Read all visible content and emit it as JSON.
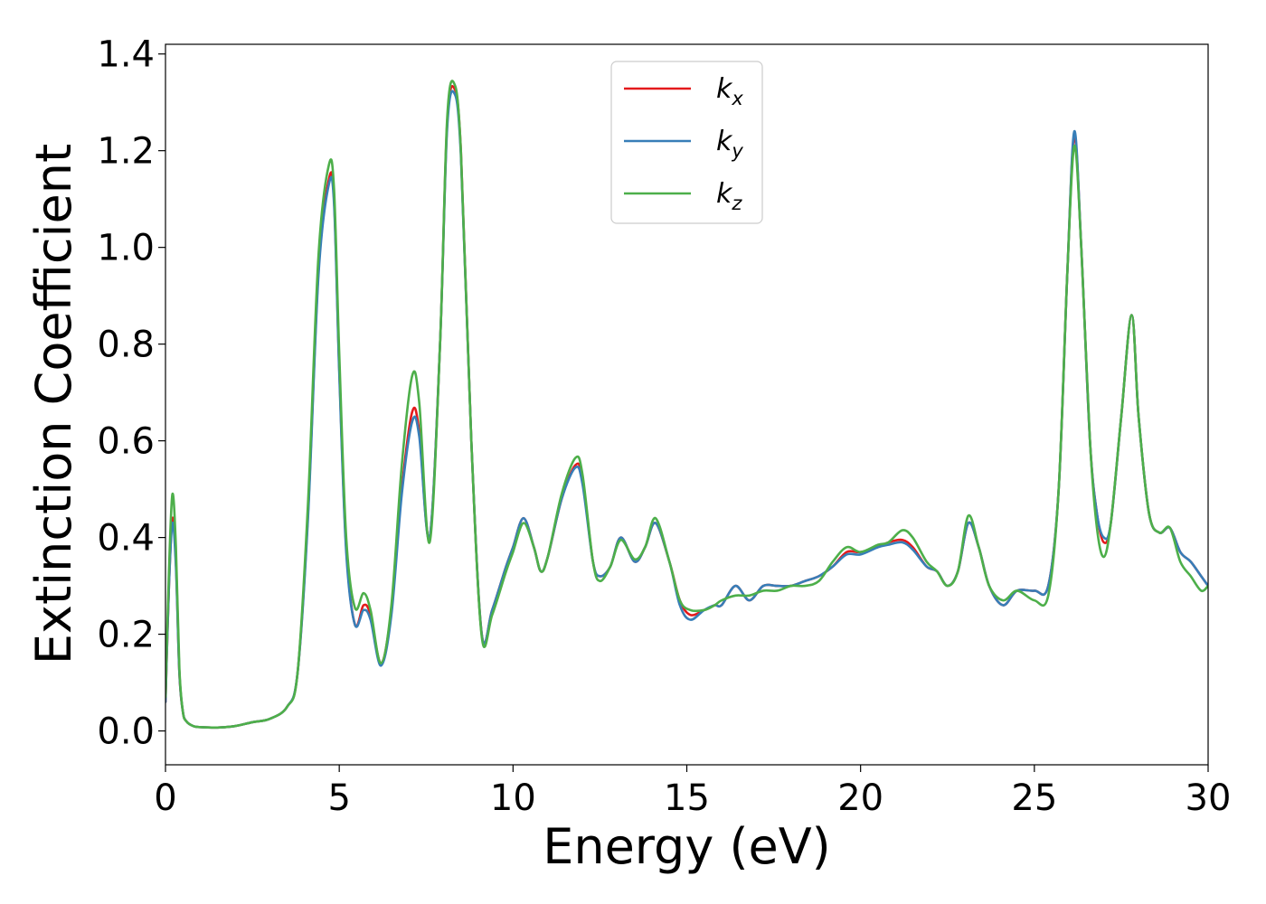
{
  "chart_data": {
    "type": "line",
    "title": "",
    "xlabel": "Energy (eV)",
    "ylabel": "Extinction Coefficient",
    "xlim": [
      0,
      30
    ],
    "ylim": [
      -0.07,
      1.42
    ],
    "xticks": [
      0,
      5,
      10,
      15,
      20,
      25,
      30
    ],
    "xtick_labels": [
      "0",
      "5",
      "10",
      "15",
      "20",
      "25",
      "30"
    ],
    "yticks": [
      0.0,
      0.2,
      0.4,
      0.6,
      0.8,
      1.0,
      1.2,
      1.4
    ],
    "ytick_labels": [
      "0.0",
      "0.2",
      "0.4",
      "0.6",
      "0.8",
      "1.0",
      "1.2",
      "1.4"
    ],
    "grid": false,
    "legend_position": "top-center",
    "series": [
      {
        "name": "k_x",
        "label_base": "k",
        "label_sub": "x",
        "color": "#e41a1c",
        "x": [
          0.0,
          0.1,
          0.2,
          0.3,
          0.4,
          0.5,
          0.6,
          0.8,
          1.0,
          1.5,
          2.0,
          2.5,
          3.0,
          3.5,
          3.8,
          4.1,
          4.4,
          4.7,
          4.85,
          5.0,
          5.2,
          5.45,
          5.7,
          5.9,
          6.2,
          6.5,
          6.8,
          7.1,
          7.3,
          7.6,
          7.9,
          8.1,
          8.3,
          8.5,
          8.8,
          9.1,
          9.4,
          9.8,
          10.0,
          10.3,
          10.6,
          10.8,
          11.0,
          11.4,
          11.8,
          12.0,
          12.3,
          12.5,
          12.8,
          13.1,
          13.5,
          13.8,
          14.1,
          14.5,
          14.8,
          15.1,
          15.5,
          15.8,
          16.0,
          16.4,
          16.8,
          17.2,
          17.6,
          18.0,
          18.4,
          18.8,
          19.2,
          19.6,
          20.0,
          20.5,
          20.8,
          21.2,
          21.5,
          21.9,
          22.2,
          22.5,
          22.8,
          23.1,
          23.4,
          23.7,
          24.1,
          24.5,
          25.0,
          25.4,
          25.7,
          25.95,
          26.15,
          26.35,
          26.6,
          26.8,
          27.0,
          27.2,
          27.5,
          27.8,
          28.0,
          28.3,
          28.6,
          28.9,
          29.2,
          29.5,
          29.8,
          30.0
        ],
        "y": [
          0.06,
          0.3,
          0.44,
          0.35,
          0.12,
          0.04,
          0.02,
          0.01,
          0.008,
          0.007,
          0.01,
          0.018,
          0.025,
          0.05,
          0.12,
          0.45,
          0.95,
          1.14,
          1.1,
          0.75,
          0.38,
          0.22,
          0.26,
          0.24,
          0.14,
          0.25,
          0.5,
          0.66,
          0.62,
          0.4,
          0.8,
          1.25,
          1.33,
          1.2,
          0.6,
          0.2,
          0.25,
          0.34,
          0.38,
          0.44,
          0.38,
          0.33,
          0.36,
          0.48,
          0.55,
          0.52,
          0.35,
          0.32,
          0.34,
          0.4,
          0.35,
          0.38,
          0.43,
          0.35,
          0.27,
          0.24,
          0.25,
          0.26,
          0.26,
          0.3,
          0.27,
          0.3,
          0.3,
          0.3,
          0.31,
          0.32,
          0.34,
          0.37,
          0.37,
          0.38,
          0.39,
          0.395,
          0.38,
          0.34,
          0.33,
          0.3,
          0.33,
          0.43,
          0.38,
          0.3,
          0.26,
          0.29,
          0.29,
          0.3,
          0.5,
          0.95,
          1.23,
          1.0,
          0.6,
          0.45,
          0.39,
          0.43,
          0.65,
          0.86,
          0.65,
          0.45,
          0.41,
          0.42,
          0.37,
          0.35,
          0.32,
          0.3
        ]
      },
      {
        "name": "k_y",
        "label_base": "k",
        "label_sub": "y",
        "color": "#377eb8",
        "x": [
          0.0,
          0.1,
          0.2,
          0.3,
          0.4,
          0.5,
          0.6,
          0.8,
          1.0,
          1.5,
          2.0,
          2.5,
          3.0,
          3.5,
          3.8,
          4.1,
          4.4,
          4.7,
          4.85,
          5.0,
          5.2,
          5.45,
          5.7,
          5.9,
          6.2,
          6.5,
          6.8,
          7.1,
          7.3,
          7.6,
          7.9,
          8.1,
          8.3,
          8.5,
          8.8,
          9.1,
          9.4,
          9.8,
          10.0,
          10.3,
          10.6,
          10.8,
          11.0,
          11.4,
          11.8,
          12.0,
          12.3,
          12.5,
          12.8,
          13.1,
          13.5,
          13.8,
          14.1,
          14.5,
          14.8,
          15.1,
          15.5,
          15.8,
          16.0,
          16.4,
          16.8,
          17.2,
          17.6,
          18.0,
          18.4,
          18.8,
          19.2,
          19.6,
          20.0,
          20.5,
          20.8,
          21.2,
          21.5,
          21.9,
          22.2,
          22.5,
          22.8,
          23.1,
          23.4,
          23.7,
          24.1,
          24.5,
          25.0,
          25.4,
          25.7,
          25.95,
          26.15,
          26.35,
          26.6,
          26.8,
          27.0,
          27.2,
          27.5,
          27.8,
          28.0,
          28.3,
          28.6,
          28.9,
          29.2,
          29.5,
          29.8,
          30.0
        ],
        "y": [
          0.06,
          0.3,
          0.43,
          0.34,
          0.12,
          0.04,
          0.02,
          0.01,
          0.008,
          0.007,
          0.01,
          0.018,
          0.025,
          0.05,
          0.12,
          0.44,
          0.94,
          1.13,
          1.09,
          0.74,
          0.37,
          0.22,
          0.25,
          0.23,
          0.135,
          0.24,
          0.49,
          0.64,
          0.61,
          0.4,
          0.8,
          1.24,
          1.32,
          1.19,
          0.6,
          0.2,
          0.25,
          0.34,
          0.38,
          0.44,
          0.38,
          0.33,
          0.36,
          0.48,
          0.545,
          0.51,
          0.35,
          0.32,
          0.34,
          0.4,
          0.35,
          0.38,
          0.43,
          0.35,
          0.26,
          0.23,
          0.25,
          0.26,
          0.26,
          0.3,
          0.27,
          0.3,
          0.3,
          0.3,
          0.31,
          0.32,
          0.34,
          0.365,
          0.365,
          0.38,
          0.385,
          0.39,
          0.375,
          0.34,
          0.33,
          0.3,
          0.33,
          0.43,
          0.38,
          0.3,
          0.26,
          0.29,
          0.29,
          0.3,
          0.5,
          0.95,
          1.24,
          1.0,
          0.6,
          0.45,
          0.4,
          0.43,
          0.65,
          0.86,
          0.65,
          0.45,
          0.41,
          0.42,
          0.37,
          0.35,
          0.32,
          0.3
        ]
      },
      {
        "name": "k_z",
        "label_base": "k",
        "label_sub": "z",
        "color": "#4daf4a",
        "x": [
          0.0,
          0.1,
          0.2,
          0.3,
          0.4,
          0.5,
          0.6,
          0.8,
          1.0,
          1.5,
          2.0,
          2.5,
          3.0,
          3.5,
          3.8,
          4.1,
          4.4,
          4.7,
          4.85,
          5.0,
          5.2,
          5.45,
          5.7,
          5.9,
          6.2,
          6.5,
          6.8,
          7.1,
          7.3,
          7.6,
          7.9,
          8.1,
          8.3,
          8.5,
          8.8,
          9.1,
          9.4,
          9.8,
          10.0,
          10.3,
          10.6,
          10.8,
          11.0,
          11.4,
          11.8,
          12.0,
          12.3,
          12.5,
          12.8,
          13.1,
          13.5,
          13.8,
          14.1,
          14.5,
          14.8,
          15.1,
          15.5,
          15.8,
          16.0,
          16.4,
          16.8,
          17.2,
          17.6,
          18.0,
          18.4,
          18.8,
          19.2,
          19.6,
          20.0,
          20.5,
          20.8,
          21.2,
          21.5,
          21.9,
          22.2,
          22.5,
          22.8,
          23.1,
          23.4,
          23.7,
          24.1,
          24.5,
          25.0,
          25.4,
          25.7,
          25.95,
          26.15,
          26.35,
          26.6,
          26.8,
          27.0,
          27.2,
          27.5,
          27.8,
          28.0,
          28.3,
          28.6,
          28.9,
          29.2,
          29.5,
          29.8,
          30.0
        ],
        "y": [
          0.07,
          0.33,
          0.49,
          0.38,
          0.13,
          0.04,
          0.02,
          0.01,
          0.008,
          0.007,
          0.01,
          0.018,
          0.025,
          0.05,
          0.12,
          0.47,
          0.98,
          1.17,
          1.12,
          0.78,
          0.4,
          0.255,
          0.285,
          0.25,
          0.14,
          0.26,
          0.55,
          0.735,
          0.68,
          0.39,
          0.8,
          1.26,
          1.34,
          1.2,
          0.6,
          0.195,
          0.24,
          0.33,
          0.37,
          0.43,
          0.38,
          0.33,
          0.36,
          0.49,
          0.565,
          0.53,
          0.35,
          0.31,
          0.34,
          0.395,
          0.355,
          0.38,
          0.44,
          0.35,
          0.27,
          0.25,
          0.25,
          0.26,
          0.27,
          0.28,
          0.28,
          0.29,
          0.29,
          0.3,
          0.3,
          0.31,
          0.35,
          0.38,
          0.37,
          0.385,
          0.39,
          0.415,
          0.4,
          0.35,
          0.33,
          0.3,
          0.33,
          0.445,
          0.38,
          0.3,
          0.27,
          0.29,
          0.27,
          0.28,
          0.5,
          0.95,
          1.21,
          1.0,
          0.6,
          0.42,
          0.36,
          0.43,
          0.65,
          0.86,
          0.65,
          0.45,
          0.41,
          0.42,
          0.35,
          0.32,
          0.29,
          0.3
        ]
      }
    ]
  }
}
